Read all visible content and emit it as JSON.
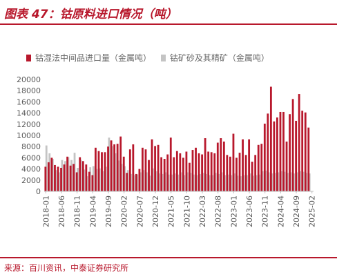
{
  "header": {
    "title": "图表 47：钴原料进口情况（吨）"
  },
  "footer": {
    "source": "来源：百川资讯，中泰证券研究所"
  },
  "colors": {
    "series1": "#b8182c",
    "series2": "#c4c4c4",
    "axis": "#bfbfbf",
    "text": "#595959",
    "accent": "#b8182c"
  },
  "chart_data": {
    "type": "bar",
    "title": "",
    "xlabel": "",
    "ylabel": "",
    "ylim": [
      0,
      20000
    ],
    "yticks": [
      0,
      2000,
      4000,
      6000,
      8000,
      10000,
      12000,
      14000,
      16000,
      18000,
      20000
    ],
    "grid": false,
    "legend_position": "top",
    "x_tick_labels": [
      "2018-01",
      "2018-06",
      "2018-11",
      "2019-04",
      "2019-09",
      "2020-02",
      "2020-07",
      "2020-12",
      "2021-05",
      "2021-10",
      "2022-03",
      "2022-08",
      "2023-01",
      "2023-06",
      "2023-11",
      "2024-04",
      "2024-09",
      "2025-02"
    ],
    "categories": [
      "2018-01",
      "2018-02",
      "2018-03",
      "2018-04",
      "2018-05",
      "2018-06",
      "2018-07",
      "2018-08",
      "2018-09",
      "2018-10",
      "2018-11",
      "2018-12",
      "2019-01",
      "2019-02",
      "2019-03",
      "2019-04",
      "2019-05",
      "2019-06",
      "2019-07",
      "2019-08",
      "2019-09",
      "2019-10",
      "2019-11",
      "2019-12",
      "2020-01",
      "2020-02",
      "2020-03",
      "2020-04",
      "2020-05",
      "2020-06",
      "2020-07",
      "2020-08",
      "2020-09",
      "2020-10",
      "2020-11",
      "2020-12",
      "2021-01",
      "2021-02",
      "2021-03",
      "2021-04",
      "2021-05",
      "2021-06",
      "2021-07",
      "2021-08",
      "2021-09",
      "2021-10",
      "2021-11",
      "2021-12",
      "2022-01",
      "2022-02",
      "2022-03",
      "2022-04",
      "2022-05",
      "2022-06",
      "2022-07",
      "2022-08",
      "2022-09",
      "2022-10",
      "2022-11",
      "2022-12",
      "2023-01",
      "2023-02",
      "2023-03",
      "2023-04",
      "2023-05",
      "2023-06",
      "2023-07",
      "2023-08",
      "2023-09",
      "2023-10",
      "2023-11",
      "2023-12",
      "2024-01",
      "2024-02",
      "2024-03",
      "2024-04",
      "2024-05",
      "2024-06",
      "2024-07",
      "2024-08",
      "2024-09",
      "2024-10",
      "2024-11",
      "2024-12",
      "2025-01",
      "2025-02"
    ],
    "series": [
      {
        "name": "钴湿法中间品进口量（金属吨）",
        "values": [
          4400,
          5200,
          6000,
          4700,
          4400,
          4200,
          4800,
          6200,
          4600,
          4900,
          3400,
          6100,
          5400,
          4800,
          3500,
          2900,
          7800,
          7200,
          7000,
          7000,
          8000,
          9100,
          8400,
          8500,
          9800,
          6200,
          3300,
          7500,
          8400,
          3100,
          4000,
          7800,
          7500,
          5600,
          9300,
          8100,
          8300,
          6100,
          5800,
          6600,
          9600,
          6100,
          7200,
          6800,
          6000,
          7100,
          5100,
          7400,
          7800,
          6800,
          6600,
          9500,
          7100,
          7000,
          6800,
          8700,
          9500,
          8900,
          6500,
          6200,
          10300,
          6000,
          6900,
          9300,
          6500,
          9300,
          5300,
          6500,
          8300,
          8500,
          12100,
          13900,
          18700,
          12500,
          13200,
          14200,
          14200,
          8900,
          13800,
          16500,
          12600,
          17400,
          14400,
          14100,
          11400,
          0
        ]
      },
      {
        "name": "钴矿砂及其精矿（金属吨）",
        "values": [
          8200,
          6800,
          5800,
          3800,
          3400,
          5600,
          5400,
          6100,
          5600,
          6900,
          4200,
          5600,
          3900,
          2700,
          4300,
          4500,
          4000,
          4100,
          3600,
          4400,
          9600,
          8100,
          6800,
          5500,
          4900,
          4500,
          3800,
          3100,
          2900,
          3000,
          3400,
          3800,
          3400,
          2800,
          4100,
          3600,
          3200,
          3100,
          3400,
          3000,
          3000,
          3200,
          3000,
          3400,
          2900,
          3400,
          3300,
          3000,
          2900,
          3100,
          3300,
          3100,
          2900,
          2900,
          3300,
          3100,
          3400,
          2900,
          3000,
          2900,
          3200,
          2800,
          2700,
          2900,
          2900,
          3200,
          2800,
          2900,
          3000,
          3600,
          3700,
          3400,
          3200,
          3300,
          3400,
          3600,
          3500,
          3300,
          3400,
          3200,
          3400,
          3600,
          3500,
          3300,
          3200,
          0
        ]
      }
    ]
  }
}
